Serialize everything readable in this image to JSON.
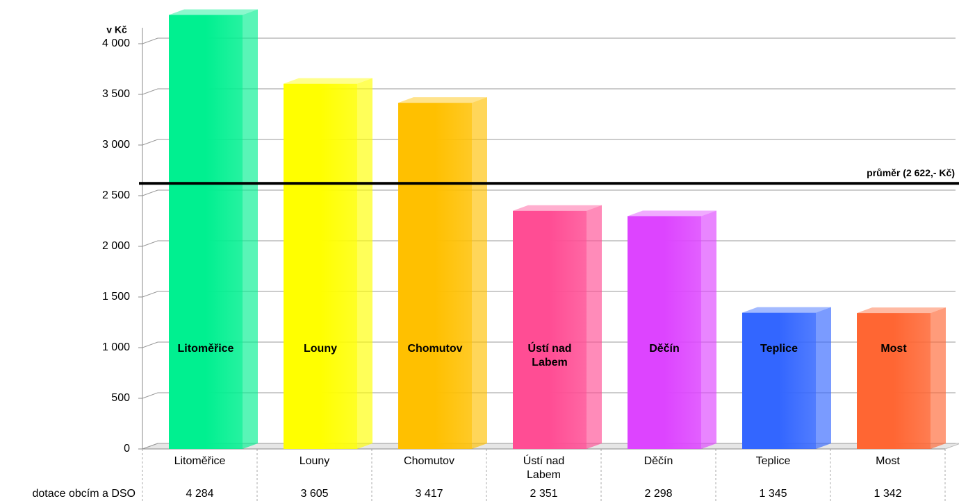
{
  "chart_data": {
    "type": "bar3d",
    "y_axis_label": "v Kč",
    "categories": [
      "Litoměřice",
      "Louny",
      "Chomutov",
      "Ústí nad Labem",
      "Děčín",
      "Teplice",
      "Most"
    ],
    "series": [
      {
        "name": "dotace obcím a DSO",
        "values": [
          4284,
          3605,
          3417,
          2351,
          2298,
          1345,
          1342
        ],
        "value_labels": [
          "4 284",
          "3 605",
          "3 417",
          "2 351",
          "2 298",
          "1 345",
          "1 342"
        ]
      }
    ],
    "colors": [
      "#00f090",
      "#ffff00",
      "#ffc000",
      "#ff4d94",
      "#dd44ff",
      "#3366ff",
      "#ff6633"
    ],
    "ylim": [
      0,
      4000
    ],
    "yticks": [
      0,
      500,
      {
        "value": 1000,
        "label": "1 000"
      },
      {
        "value": 1500,
        "label": "1 500"
      },
      {
        "value": 2000,
        "label": "2 000"
      },
      {
        "value": 2500,
        "label": "2 500"
      },
      {
        "value": 3000,
        "label": "3 000"
      },
      {
        "value": 3500,
        "label": "3 500"
      },
      {
        "value": 4000,
        "label": "4 000"
      }
    ],
    "grid": true,
    "average": {
      "value": 2622,
      "label": "průměr (2 622,- Kč)"
    }
  }
}
